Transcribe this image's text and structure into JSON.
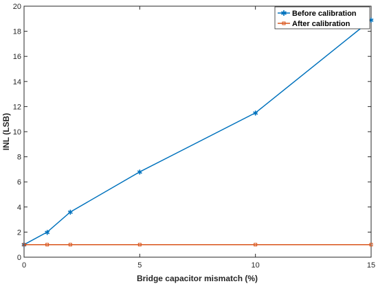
{
  "chart_data": {
    "type": "line",
    "title": "",
    "xlabel": "Bridge capacitor mismatch (%)",
    "ylabel": "INL (LSB)",
    "xlim": [
      0,
      15
    ],
    "ylim": [
      0,
      20
    ],
    "xticks": [
      0,
      5,
      10,
      15
    ],
    "yticks": [
      0,
      2,
      4,
      6,
      8,
      10,
      12,
      14,
      16,
      18,
      20
    ],
    "grid": false,
    "legend_position": "top-right",
    "series": [
      {
        "name": "Before calibration",
        "color": "#0072BD",
        "marker": "star",
        "x": [
          0,
          1,
          2,
          5,
          10,
          15
        ],
        "y": [
          1.0,
          2.0,
          3.6,
          6.8,
          11.5,
          18.9
        ]
      },
      {
        "name": "After calibration",
        "color": "#D95319",
        "marker": "square",
        "x": [
          0,
          1,
          2,
          5,
          10,
          15
        ],
        "y": [
          1.0,
          1.0,
          1.0,
          1.0,
          1.0,
          1.0
        ]
      }
    ]
  }
}
